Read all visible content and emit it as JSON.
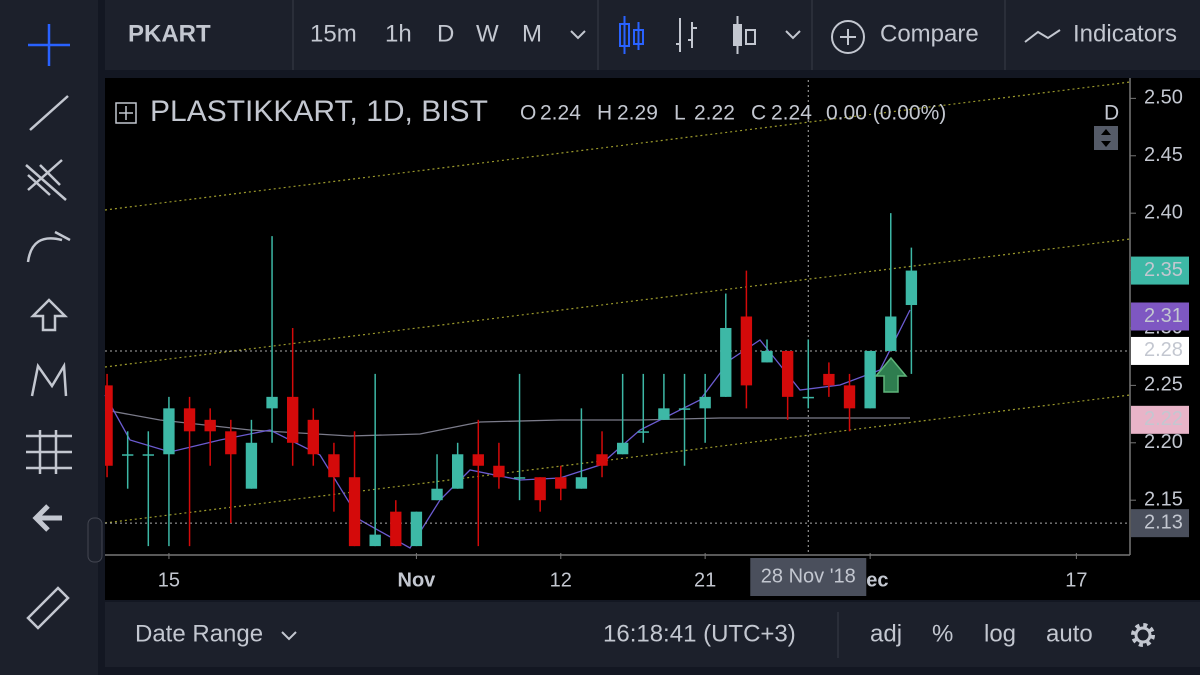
{
  "toolbar": {
    "symbol": "PKART",
    "intervals": [
      "15m",
      "1h",
      "D",
      "W",
      "M"
    ],
    "active_interval": 2,
    "compare": "Compare",
    "indicators": "Indicators"
  },
  "chart_data": {
    "type": "candlestick",
    "title": "PLASTIKKART, 1D, BIST",
    "legend": [
      {
        "key": "O",
        "value": "2.24"
      },
      {
        "key": "H",
        "value": "2.29"
      },
      {
        "key": "L",
        "value": "2.22"
      },
      {
        "key": "C",
        "value": "2.24"
      }
    ],
    "change": "0.00 (0.00%)",
    "badge": "D",
    "up_color": "#3db8a6",
    "down_color": "#d40a0a",
    "candles": [
      [
        2.25,
        2.26,
        2.17,
        2.18
      ],
      [
        2.19,
        2.21,
        2.16,
        2.19
      ],
      [
        2.19,
        2.21,
        2.11,
        2.19
      ],
      [
        2.19,
        2.24,
        2.11,
        2.23
      ],
      [
        2.23,
        2.24,
        2.11,
        2.21
      ],
      [
        2.22,
        2.23,
        2.18,
        2.21
      ],
      [
        2.21,
        2.22,
        2.13,
        2.19
      ],
      [
        2.16,
        2.22,
        2.16,
        2.2
      ],
      [
        2.23,
        2.38,
        2.2,
        2.24
      ],
      [
        2.24,
        2.3,
        2.18,
        2.2
      ],
      [
        2.22,
        2.23,
        2.18,
        2.19
      ],
      [
        2.19,
        2.2,
        2.14,
        2.17
      ],
      [
        2.17,
        2.21,
        2.11,
        2.11
      ],
      [
        2.11,
        2.26,
        2.11,
        2.12
      ],
      [
        2.14,
        2.15,
        2.11,
        2.11
      ],
      [
        2.11,
        2.14,
        2.11,
        2.14
      ],
      [
        2.15,
        2.19,
        2.15,
        2.16
      ],
      [
        2.16,
        2.2,
        2.16,
        2.19
      ],
      [
        2.19,
        2.22,
        2.11,
        2.18
      ],
      [
        2.18,
        2.2,
        2.16,
        2.17
      ],
      [
        2.17,
        2.26,
        2.15,
        2.17
      ],
      [
        2.17,
        2.17,
        2.14,
        2.15
      ],
      [
        2.17,
        2.18,
        2.15,
        2.16
      ],
      [
        2.16,
        2.23,
        2.16,
        2.17
      ],
      [
        2.19,
        2.21,
        2.17,
        2.18
      ],
      [
        2.19,
        2.26,
        2.19,
        2.2
      ],
      [
        2.21,
        2.26,
        2.2,
        2.21
      ],
      [
        2.22,
        2.26,
        2.22,
        2.23
      ],
      [
        2.23,
        2.26,
        2.18,
        2.23
      ],
      [
        2.23,
        2.26,
        2.2,
        2.24
      ],
      [
        2.24,
        2.33,
        2.24,
        2.3
      ],
      [
        2.31,
        2.35,
        2.23,
        2.25
      ],
      [
        2.27,
        2.29,
        2.27,
        2.28
      ],
      [
        2.28,
        2.28,
        2.22,
        2.24
      ],
      [
        2.24,
        2.29,
        2.23,
        2.24
      ],
      [
        2.26,
        2.27,
        2.24,
        2.25
      ],
      [
        2.25,
        2.26,
        2.21,
        2.23
      ],
      [
        2.23,
        2.28,
        2.23,
        2.28
      ],
      [
        2.28,
        2.4,
        2.28,
        2.31
      ],
      [
        2.32,
        2.37,
        2.26,
        2.35
      ]
    ],
    "xlim": [
      -0.1,
      49.6
    ],
    "xticks": [
      {
        "value": 3,
        "label": "15"
      },
      {
        "value": 15,
        "label": "Nov"
      },
      {
        "value": 22,
        "label": "12"
      },
      {
        "value": 29,
        "label": "21"
      },
      {
        "value": 37,
        "label": "Dec"
      },
      {
        "value": 47,
        "label": "17"
      }
    ],
    "ylim": [
      2.104,
      2.516
    ],
    "yticks": [
      {
        "value": 2.5,
        "label": "2.50"
      },
      {
        "value": 2.45,
        "label": "2.45"
      },
      {
        "value": 2.4,
        "label": "2.40"
      },
      {
        "value": 2.35,
        "label": "2.35"
      },
      {
        "value": 2.3,
        "label": "2.30"
      },
      {
        "value": 2.25,
        "label": "2.25"
      },
      {
        "value": 2.2,
        "label": "2.20"
      },
      {
        "value": 2.15,
        "label": "2.15"
      }
    ],
    "price_labels": [
      {
        "value": 2.35,
        "label": "2.35",
        "color": "#3db8a6",
        "text_color": "#ffffff"
      },
      {
        "value": 2.31,
        "label": "2.31",
        "color": "#7e57c2",
        "text_color": "#ffffff"
      },
      {
        "value": 2.28,
        "label": "2.28",
        "color": "#ffffff",
        "text_color": "#000000"
      },
      {
        "value": 2.22,
        "label": "2.22",
        "color": "#e8b4c8",
        "text_color": "#000000"
      },
      {
        "value": 2.13,
        "label": "2.13",
        "color": "#4a4f5c",
        "text_color": "#ffffff"
      }
    ],
    "crosshair": {
      "index": 34,
      "value": 2.28,
      "label": "28 Nov '18"
    }
  },
  "footer": {
    "date_range": "Date Range",
    "time": "16:18:41 (UTC+3)",
    "options": [
      "adj",
      "%",
      "log",
      "auto"
    ]
  }
}
